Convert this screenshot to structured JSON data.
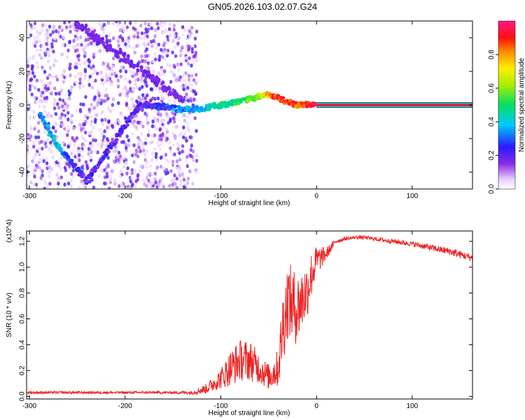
{
  "title": "GN05.2026.103.02.07.G24",
  "colors": {
    "snr_line": "#ee2222",
    "ridge_peak": "#ee1133"
  },
  "chart_data": [
    {
      "type": "heatmap",
      "title": "GN05.2026.103.02.07.G24",
      "xlabel": "Height of straight line (km)",
      "ylabel": "Frequency (Hz)",
      "xlim": [
        -303,
        163
      ],
      "ylim": [
        -50,
        50
      ],
      "xticks": [
        -300,
        -200,
        -100,
        0,
        100
      ],
      "xtick_labels": [
        "-300",
        "-200",
        "-100",
        "0",
        "100"
      ],
      "yticks": [
        -40,
        -20,
        0,
        20,
        40
      ],
      "ytick_labels": [
        "-40",
        "-20",
        "0",
        "20",
        "40"
      ],
      "colorbar": {
        "label": "Normalized spectral amplitude",
        "range": [
          0,
          1
        ],
        "ticks": [
          0.0,
          0.2,
          0.4,
          0.6,
          0.8
        ],
        "tick_labels": [
          "0.0",
          "0.2",
          "0.4",
          "0.6",
          "0.8"
        ]
      },
      "ridge": [
        {
          "x": -290,
          "y": -5,
          "v": 0.3
        },
        {
          "x": -280,
          "y": -15,
          "v": 0.35
        },
        {
          "x": -270,
          "y": -25,
          "v": 0.4
        },
        {
          "x": -255,
          "y": -35,
          "v": 0.25
        },
        {
          "x": -240,
          "y": -45,
          "v": 0.2
        },
        {
          "x": -185,
          "y": 0,
          "v": 0.2
        },
        {
          "x": -160,
          "y": -1,
          "v": 0.25
        },
        {
          "x": -140,
          "y": -3,
          "v": 0.35
        },
        {
          "x": -120,
          "y": -2,
          "v": 0.4
        },
        {
          "x": -100,
          "y": 0,
          "v": 0.45
        },
        {
          "x": -80,
          "y": 2,
          "v": 0.5
        },
        {
          "x": -60,
          "y": 5,
          "v": 0.6
        },
        {
          "x": -50,
          "y": 6,
          "v": 0.8
        },
        {
          "x": -40,
          "y": 4,
          "v": 0.9
        },
        {
          "x": -30,
          "y": 2,
          "v": 0.9
        },
        {
          "x": -20,
          "y": 0,
          "v": 0.85
        },
        {
          "x": -10,
          "y": 0,
          "v": 0.9
        },
        {
          "x": 0,
          "y": 0,
          "v": 1.0
        },
        {
          "x": 163,
          "y": 0,
          "v": 1.0
        }
      ]
    },
    {
      "type": "line",
      "xlabel": "Height of straight line (km)",
      "ylabel": "SNR (10 * v/v)",
      "y_multiplier": "(x10^4)",
      "xlim": [
        -303,
        163
      ],
      "ylim": [
        -0.02,
        1.28
      ],
      "xticks": [
        -300,
        -200,
        -100,
        0,
        100
      ],
      "xtick_labels": [
        "-300",
        "-200",
        "-100",
        "0",
        "100"
      ],
      "yticks": [
        0.0,
        0.2,
        0.4,
        0.6,
        0.8,
        1.0,
        1.2
      ],
      "ytick_labels": [
        "0.0",
        "0.2",
        "0.4",
        "0.6",
        "0.8",
        "1.0",
        "1.2"
      ],
      "series": [
        {
          "name": "SNR",
          "x": [
            -303,
            -250,
            -200,
            -150,
            -130,
            -115,
            -100,
            -90,
            -80,
            -70,
            -60,
            -50,
            -40,
            -35,
            -30,
            -25,
            -20,
            -15,
            -10,
            -5,
            0,
            10,
            20,
            30,
            40,
            50,
            60,
            80,
            100,
            120,
            140,
            163
          ],
          "y": [
            0.03,
            0.03,
            0.03,
            0.03,
            0.03,
            0.06,
            0.14,
            0.22,
            0.28,
            0.28,
            0.22,
            0.15,
            0.22,
            0.55,
            0.75,
            0.7,
            0.68,
            0.75,
            0.82,
            0.95,
            1.05,
            1.1,
            1.2,
            1.22,
            1.23,
            1.23,
            1.22,
            1.2,
            1.18,
            1.15,
            1.12,
            1.07
          ],
          "noise": [
            0.01,
            0.01,
            0.01,
            0.01,
            0.015,
            0.04,
            0.08,
            0.14,
            0.16,
            0.16,
            0.12,
            0.1,
            0.15,
            0.3,
            0.3,
            0.3,
            0.28,
            0.25,
            0.22,
            0.18,
            0.12,
            0.05,
            0.02,
            0.015,
            0.015,
            0.015,
            0.015,
            0.02,
            0.02,
            0.025,
            0.03,
            0.03
          ]
        }
      ]
    }
  ]
}
